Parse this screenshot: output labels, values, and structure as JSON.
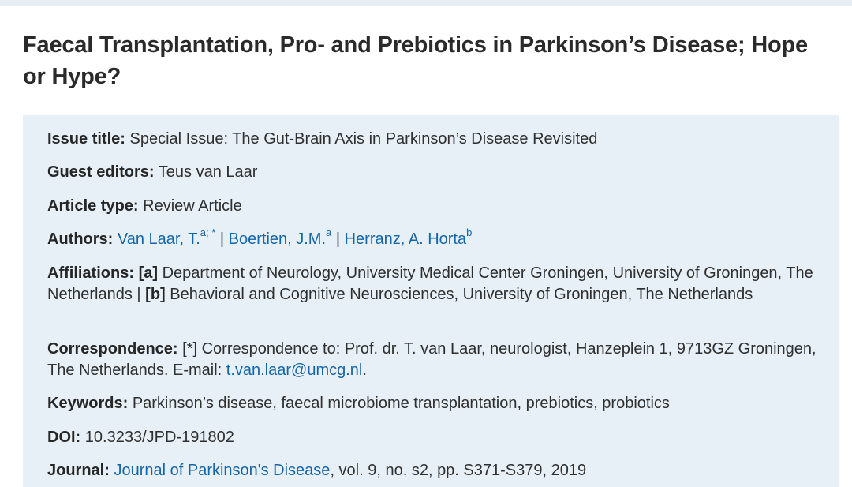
{
  "title": "Faecal Transplantation, Pro- and Prebiotics in Parkinson’s Disease; Hope or Hype?",
  "issue": {
    "label": "Issue title:",
    "value": "Special Issue: The Gut-Brain Axis in Parkinson’s Disease Revisited"
  },
  "editors": {
    "label": "Guest editors:",
    "value": "Teus van Laar"
  },
  "article_type": {
    "label": "Article type:",
    "value": "Review Article"
  },
  "authors": {
    "label": "Authors:",
    "separator": "|",
    "list": [
      {
        "name": "Van Laar, T.",
        "sup": "a; *"
      },
      {
        "name": "Boertien, J.M.",
        "sup": "a"
      },
      {
        "name": "Herranz, A. Horta",
        "sup": "b"
      }
    ]
  },
  "affiliations": {
    "label": "Affiliations:",
    "items": [
      {
        "key": "[a]",
        "text": "Department of Neurology, University Medical Center Groningen, University of Groningen, The Netherlands"
      },
      {
        "key": "[b]",
        "text": "Behavioral and Cognitive Neurosciences, University of Groningen, The Netherlands"
      }
    ],
    "separator": "|"
  },
  "correspondence": {
    "label": "Correspondence:",
    "text": "[*] Correspondence to: Prof. dr. T. van Laar, neurologist, Hanzeplein 1, 9713GZ Groningen, The Netherlands. E-mail:",
    "email": "t.van.laar@umcg.nl",
    "end": "."
  },
  "keywords": {
    "label": "Keywords:",
    "value": "Parkinson’s disease, faecal microbiome transplantation, prebiotics, probiotics"
  },
  "doi": {
    "label": "DOI:",
    "value": "10.3233/JPD-191802"
  },
  "journal": {
    "label": "Journal:",
    "name": "Journal of Parkinson's Disease",
    "details": ", vol. 9, no. s2, pp. S371-S379, 2019"
  },
  "colors": {
    "link": "#1566a8",
    "panel_bg": "#e7f0f7",
    "top_strip": "#e6eef3",
    "text": "#2f2f2f"
  }
}
